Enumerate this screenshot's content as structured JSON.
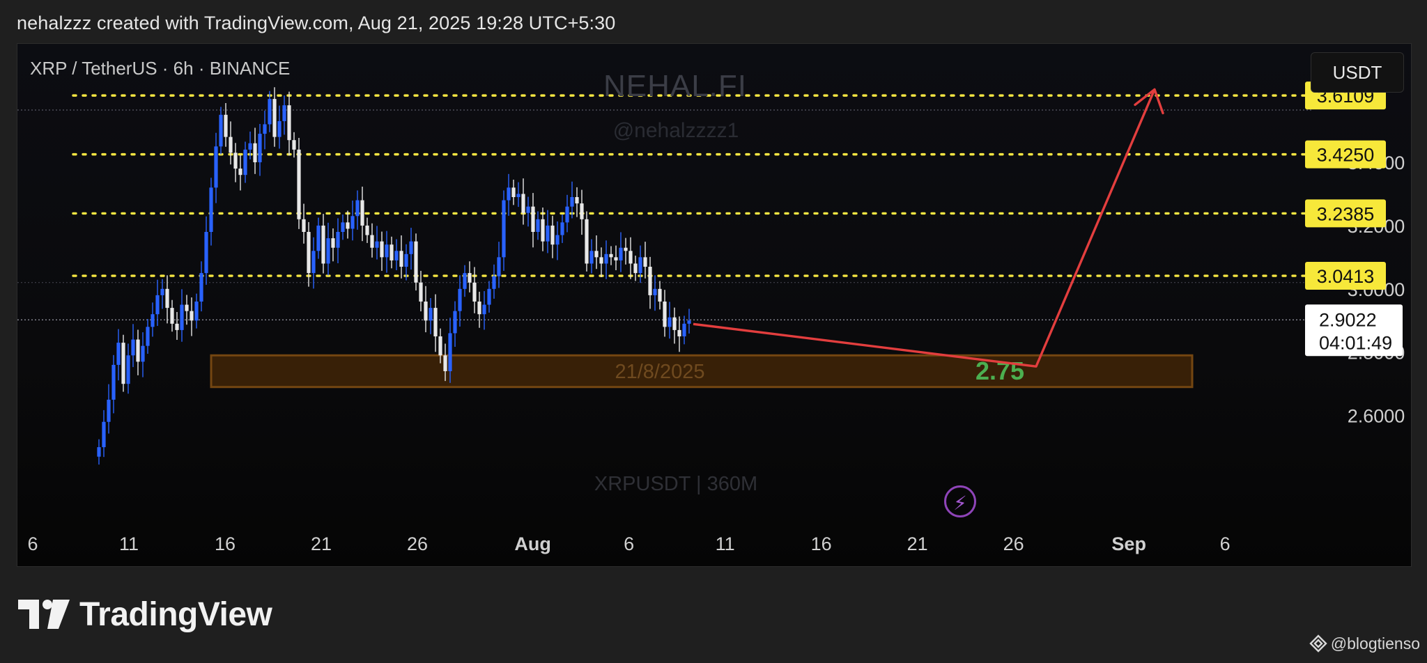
{
  "header": {
    "caption": "nehalzzz created with TradingView.com, Aug 21, 2025 19:28 UTC+5:30"
  },
  "chart_header": {
    "symbol_title": "XRP / TetherUS · 6h · BINANCE",
    "currency_button": "USDT"
  },
  "watermarks": {
    "main": "NEHAL.FI",
    "handle": "@nehalzzzz1",
    "pair": "XRPUSDT | 360M"
  },
  "colors": {
    "candle_up": "#2962ff",
    "candle_down": "#e8e8e8",
    "level_line": "#f5e642",
    "level_label_bg": "#f7e83a",
    "support_zone": "#7a4a12",
    "projection_arrow": "#e33e3e",
    "target_text": "#4caf50"
  },
  "chart_data": {
    "type": "candlestick",
    "series_name": "XRPUSDT 6h",
    "ylim": [
      2.52,
      3.73
    ],
    "x_ticks": [
      "6",
      "11",
      "16",
      "21",
      "26",
      "Aug",
      "6",
      "11",
      "16",
      "21",
      "26",
      "Sep",
      "6"
    ],
    "y_ticks": [
      "2.6000",
      "2.8000",
      "3.0000",
      "3.2000",
      "3.4000"
    ],
    "grid": false,
    "x_day_index": {
      "Jul 6": 0,
      "Aug 1": 26,
      "Sep 1": 57
    },
    "closes": [
      2.5,
      2.58,
      2.65,
      2.76,
      2.83,
      2.7,
      2.79,
      2.84,
      2.77,
      2.82,
      2.88,
      2.92,
      2.98,
      3.0,
      2.94,
      2.89,
      2.87,
      2.95,
      2.93,
      2.9,
      2.96,
      3.05,
      3.18,
      3.32,
      3.45,
      3.55,
      3.48,
      3.43,
      3.38,
      3.36,
      3.44,
      3.46,
      3.4,
      3.49,
      3.52,
      3.6,
      3.48,
      3.53,
      3.58,
      3.47,
      3.44,
      3.22,
      3.18,
      3.05,
      3.12,
      3.2,
      3.08,
      3.16,
      3.13,
      3.18,
      3.21,
      3.19,
      3.23,
      3.28,
      3.2,
      3.17,
      3.13,
      3.15,
      3.1,
      3.14,
      3.09,
      3.12,
      3.07,
      3.11,
      3.15,
      3.02,
      2.96,
      2.9,
      2.94,
      2.85,
      2.79,
      2.74,
      2.86,
      2.93,
      3.0,
      3.05,
      3.02,
      2.96,
      2.92,
      2.95,
      3.0,
      3.04,
      3.1,
      3.28,
      3.32,
      3.29,
      3.3,
      3.24,
      3.26,
      3.18,
      3.22,
      3.15,
      3.2,
      3.14,
      3.17,
      3.21,
      3.26,
      3.29,
      3.27,
      3.22,
      3.08,
      3.12,
      3.1,
      3.08,
      3.11,
      3.1,
      3.09,
      3.13,
      3.12,
      3.08,
      3.05,
      3.1,
      3.07,
      2.98,
      3.0,
      2.96,
      2.88,
      2.91,
      2.87,
      2.85,
      2.89,
      2.9
    ]
  },
  "levels": [
    "3.6109",
    "3.4250",
    "3.2385",
    "3.0413"
  ],
  "level_values": [
    3.6109,
    3.425,
    3.2385,
    3.0413
  ],
  "current_price": {
    "value": "2.9022",
    "countdown": "04:01:49",
    "price_value": 2.9022
  },
  "support_zone": {
    "date_label": "21/8/2025",
    "target_label": "2.75",
    "low": 2.69,
    "high": 2.79
  },
  "footer": {
    "brand": "TradingView",
    "credit": "@blogtienso"
  }
}
